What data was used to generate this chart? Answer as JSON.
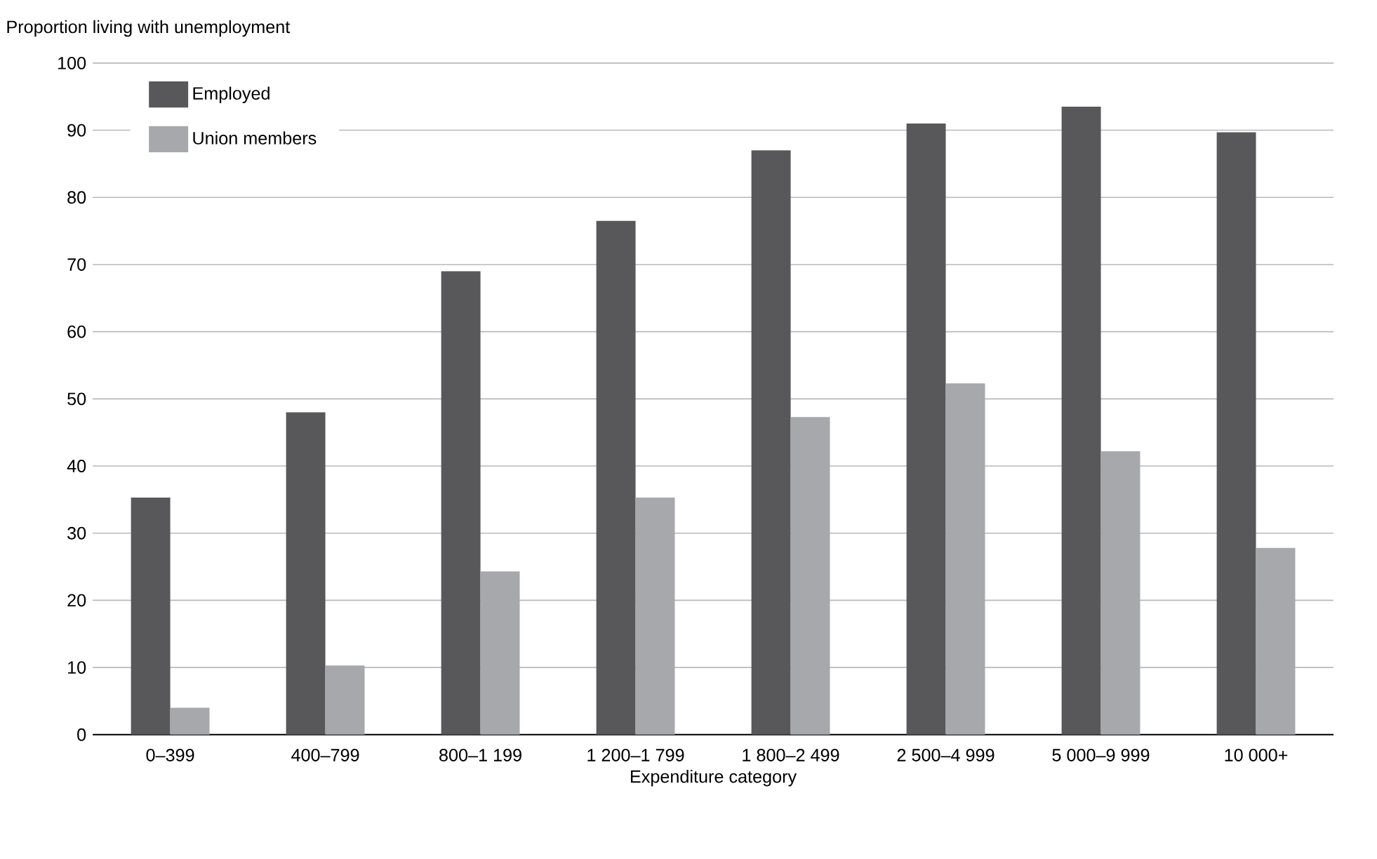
{
  "chart_data": {
    "type": "bar",
    "xlabel": "Expenditure category",
    "ylabel": "Proportion living with unemployment",
    "categories": [
      "0–399",
      "400–799",
      "800–1 199",
      "1 200–1 799",
      "1 800–2 499",
      "2 500–4 999",
      "5 000–9 999",
      "10 000+"
    ],
    "series": [
      {
        "name": "Employed",
        "color": "#58585a",
        "values": [
          35.3,
          48,
          69,
          76.5,
          87,
          91,
          93.5,
          89.7
        ]
      },
      {
        "name": "Union members",
        "color": "#a7a8ab",
        "values": [
          4,
          10.3,
          24.3,
          35.3,
          47.3,
          52.3,
          42.2,
          27.8
        ]
      }
    ],
    "ylim": [
      0,
      100
    ],
    "yticks": [
      0,
      10,
      20,
      30,
      40,
      50,
      60,
      70,
      80,
      90,
      100
    ],
    "grid": "y",
    "legend": "top left"
  }
}
